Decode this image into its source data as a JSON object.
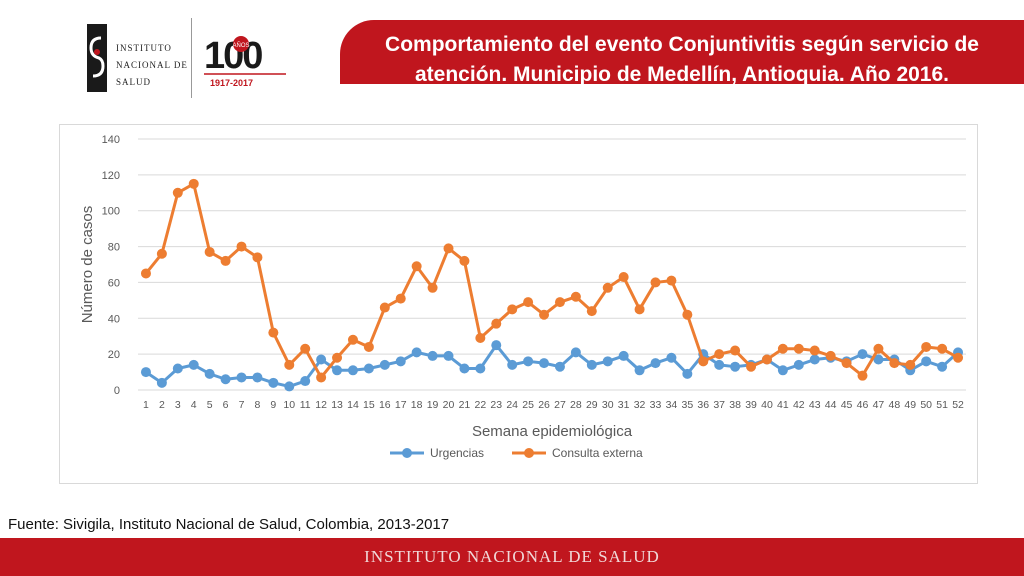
{
  "logo": {
    "institute_lines": [
      "Instituto",
      "Nacional de",
      "Salud"
    ],
    "anniversary_number": "100",
    "anniversary_word": "AÑOS",
    "anniversary_years": "1917-2017"
  },
  "title": "Comportamiento del evento Conjuntivitis según servicio de atención. Municipio de Medellín, Antioquia. Año 2016.",
  "source_text": "Fuente: Sivigila, Instituto Nacional de Salud, Colombia, 2013-2017",
  "footer_text": "INSTITUTO NACIONAL DE SALUD",
  "colors": {
    "brand_red": "#c0161e",
    "urgencias": "#5b9bd5",
    "consulta_externa": "#ed7d31"
  },
  "chart_data": {
    "type": "line",
    "xlabel": "Semana epidemiológica",
    "ylabel": "Número de casos",
    "ylim": [
      0,
      140
    ],
    "yticks": [
      0,
      20,
      40,
      60,
      80,
      100,
      120,
      140
    ],
    "grid": true,
    "legend_position": "bottom",
    "categories": [
      "1",
      "2",
      "3",
      "4",
      "5",
      "6",
      "7",
      "8",
      "9",
      "10",
      "11",
      "12",
      "13",
      "14",
      "15",
      "16",
      "17",
      "18",
      "19",
      "20",
      "21",
      "22",
      "23",
      "24",
      "25",
      "26",
      "27",
      "28",
      "29",
      "30",
      "31",
      "32",
      "33",
      "34",
      "35",
      "36",
      "37",
      "38",
      "39",
      "40",
      "41",
      "42",
      "43",
      "44",
      "45",
      "46",
      "47",
      "48",
      "49",
      "50",
      "51",
      "52"
    ],
    "series": [
      {
        "name": "Urgencias",
        "values": [
          10,
          4,
          12,
          14,
          9,
          6,
          7,
          7,
          4,
          2,
          5,
          17,
          11,
          11,
          12,
          14,
          16,
          21,
          19,
          19,
          12,
          12,
          25,
          14,
          16,
          15,
          13,
          21,
          14,
          16,
          19,
          11,
          15,
          18,
          9,
          20,
          14,
          13,
          14,
          17,
          11,
          14,
          17,
          18,
          16,
          20,
          17,
          17,
          11,
          16,
          13,
          21
        ]
      },
      {
        "name": "Consulta externa",
        "values": [
          65,
          76,
          110,
          115,
          77,
          72,
          80,
          74,
          32,
          14,
          23,
          7,
          18,
          28,
          24,
          46,
          51,
          69,
          57,
          79,
          72,
          29,
          37,
          45,
          49,
          42,
          49,
          52,
          44,
          57,
          63,
          45,
          60,
          61,
          42,
          16,
          20,
          22,
          13,
          17,
          23,
          23,
          22,
          19,
          15,
          8,
          23,
          15,
          14,
          24,
          23,
          18
        ]
      }
    ]
  }
}
